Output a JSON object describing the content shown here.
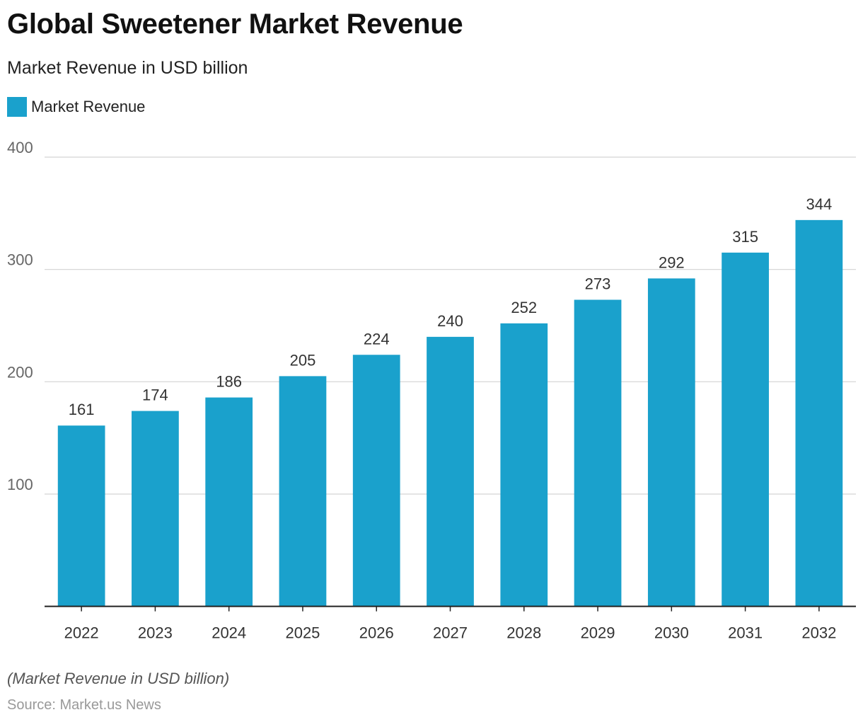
{
  "header": {
    "title": "Global Sweetener Market Revenue",
    "subtitle": "Market Revenue in USD billion"
  },
  "footer": {
    "note": "(Market Revenue in USD billion)",
    "source": "Source: Market.us News"
  },
  "colors": {
    "bar": "#1aa1cc",
    "grid": "#d3d3d3",
    "axis": "#222222",
    "tick_text": "#666666",
    "label_text": "#333333"
  },
  "chart_data": {
    "type": "bar",
    "title": "Global Sweetener Market Revenue",
    "subtitle": "Market Revenue in USD billion",
    "categories": [
      "2022",
      "2023",
      "2024",
      "2025",
      "2026",
      "2027",
      "2028",
      "2029",
      "2030",
      "2031",
      "2032"
    ],
    "series": [
      {
        "name": "Market Revenue",
        "values": [
          161,
          174,
          186,
          205,
          224,
          240,
          252,
          273,
          292,
          315,
          344
        ]
      }
    ],
    "ylim": [
      0,
      400
    ],
    "yticks": [
      100,
      200,
      300,
      400
    ],
    "grid": true,
    "legend": "top-left",
    "data_labels": true
  }
}
